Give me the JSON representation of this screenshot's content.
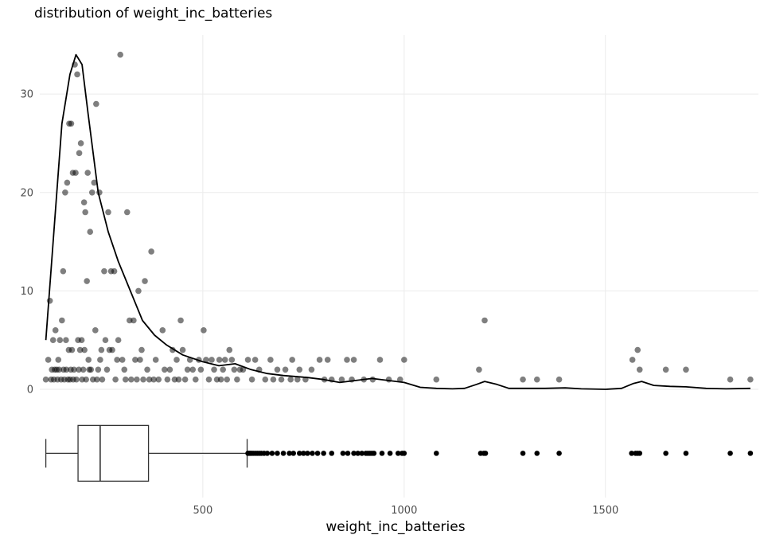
{
  "chart_data": {
    "type": "scatter",
    "title": "distribution of weight_inc_batteries",
    "xlabel": "weight_inc_batteries",
    "ylabel": "",
    "xlim": [
      95,
      1880
    ],
    "ylim": [
      -11,
      36
    ],
    "x_ticks": [
      500,
      1000,
      1500
    ],
    "y_ticks": [
      0,
      10,
      20,
      30
    ],
    "grid": true,
    "series": [
      {
        "kind": "scatter",
        "points": [
          [
            110,
            1
          ],
          [
            116,
            3
          ],
          [
            120,
            9
          ],
          [
            123,
            1
          ],
          [
            125,
            2
          ],
          [
            128,
            5
          ],
          [
            130,
            1
          ],
          [
            132,
            2
          ],
          [
            134,
            6
          ],
          [
            137,
            2
          ],
          [
            139,
            1
          ],
          [
            141,
            3
          ],
          [
            143,
            2
          ],
          [
            145,
            5
          ],
          [
            148,
            1
          ],
          [
            150,
            7
          ],
          [
            153,
            12
          ],
          [
            154,
            2
          ],
          [
            156,
            1
          ],
          [
            158,
            20
          ],
          [
            160,
            5
          ],
          [
            161,
            2
          ],
          [
            163,
            21
          ],
          [
            165,
            1
          ],
          [
            167,
            4
          ],
          [
            168,
            27
          ],
          [
            170,
            1
          ],
          [
            172,
            2
          ],
          [
            173,
            27
          ],
          [
            175,
            4
          ],
          [
            177,
            22
          ],
          [
            178,
            1
          ],
          [
            180,
            2
          ],
          [
            182,
            33
          ],
          [
            184,
            22
          ],
          [
            186,
            1
          ],
          [
            188,
            32
          ],
          [
            190,
            5
          ],
          [
            192,
            2
          ],
          [
            193,
            24
          ],
          [
            195,
            4
          ],
          [
            197,
            25
          ],
          [
            199,
            5
          ],
          [
            200,
            1
          ],
          [
            203,
            2
          ],
          [
            205,
            19
          ],
          [
            206,
            4
          ],
          [
            208,
            18
          ],
          [
            210,
            1
          ],
          [
            212,
            11
          ],
          [
            214,
            22
          ],
          [
            216,
            3
          ],
          [
            218,
            2
          ],
          [
            220,
            16
          ],
          [
            222,
            2
          ],
          [
            225,
            20
          ],
          [
            227,
            1
          ],
          [
            230,
            21
          ],
          [
            233,
            6
          ],
          [
            235,
            29
          ],
          [
            237,
            1
          ],
          [
            240,
            2
          ],
          [
            243,
            20
          ],
          [
            245,
            3
          ],
          [
            248,
            4
          ],
          [
            250,
            1
          ],
          [
            255,
            12
          ],
          [
            258,
            5
          ],
          [
            262,
            2
          ],
          [
            265,
            18
          ],
          [
            268,
            4
          ],
          [
            272,
            12
          ],
          [
            275,
            4
          ],
          [
            280,
            12
          ],
          [
            283,
            1
          ],
          [
            287,
            3
          ],
          [
            290,
            5
          ],
          [
            295,
            34
          ],
          [
            300,
            3
          ],
          [
            305,
            2
          ],
          [
            308,
            1
          ],
          [
            312,
            18
          ],
          [
            318,
            7
          ],
          [
            322,
            1
          ],
          [
            328,
            7
          ],
          [
            332,
            3
          ],
          [
            336,
            1
          ],
          [
            340,
            10
          ],
          [
            344,
            3
          ],
          [
            348,
            4
          ],
          [
            352,
            1
          ],
          [
            356,
            11
          ],
          [
            362,
            2
          ],
          [
            367,
            1
          ],
          [
            372,
            14
          ],
          [
            378,
            1
          ],
          [
            383,
            3
          ],
          [
            390,
            1
          ],
          [
            400,
            6
          ],
          [
            405,
            2
          ],
          [
            412,
            1
          ],
          [
            418,
            2
          ],
          [
            425,
            4
          ],
          [
            430,
            1
          ],
          [
            435,
            3
          ],
          [
            440,
            1
          ],
          [
            445,
            7
          ],
          [
            450,
            4
          ],
          [
            456,
            1
          ],
          [
            462,
            2
          ],
          [
            468,
            3
          ],
          [
            475,
            2
          ],
          [
            482,
            1
          ],
          [
            490,
            3
          ],
          [
            495,
            2
          ],
          [
            502,
            6
          ],
          [
            508,
            3
          ],
          [
            515,
            1
          ],
          [
            522,
            3
          ],
          [
            528,
            2
          ],
          [
            535,
            1
          ],
          [
            541,
            3
          ],
          [
            545,
            1
          ],
          [
            550,
            2
          ],
          [
            555,
            3
          ],
          [
            560,
            1
          ],
          [
            566,
            4
          ],
          [
            572,
            3
          ],
          [
            578,
            2
          ],
          [
            585,
            1
          ],
          [
            592,
            2
          ],
          [
            600,
            2
          ],
          [
            612,
            3
          ],
          [
            622,
            1
          ],
          [
            630,
            3
          ],
          [
            640,
            2
          ],
          [
            655,
            1
          ],
          [
            668,
            3
          ],
          [
            675,
            1
          ],
          [
            685,
            2
          ],
          [
            695,
            1
          ],
          [
            705,
            2
          ],
          [
            718,
            1
          ],
          [
            722,
            3
          ],
          [
            735,
            1
          ],
          [
            740,
            2
          ],
          [
            755,
            1
          ],
          [
            770,
            2
          ],
          [
            790,
            3
          ],
          [
            802,
            1
          ],
          [
            810,
            3
          ],
          [
            820,
            1
          ],
          [
            845,
            1
          ],
          [
            858,
            3
          ],
          [
            870,
            1
          ],
          [
            875,
            3
          ],
          [
            900,
            1
          ],
          [
            922,
            1
          ],
          [
            940,
            3
          ],
          [
            962,
            1
          ],
          [
            990,
            1
          ],
          [
            1000,
            3
          ],
          [
            1080,
            1
          ],
          [
            1186,
            2
          ],
          [
            1200,
            7
          ],
          [
            1295,
            1
          ],
          [
            1330,
            1
          ],
          [
            1385,
            1
          ],
          [
            1567,
            3
          ],
          [
            1580,
            4
          ],
          [
            1585,
            2
          ],
          [
            1650,
            2
          ],
          [
            1700,
            2
          ],
          [
            1810,
            1
          ],
          [
            1860,
            1
          ]
        ]
      },
      {
        "kind": "density",
        "points": [
          [
            110,
            5
          ],
          [
            130,
            16
          ],
          [
            150,
            27
          ],
          [
            170,
            32
          ],
          [
            185,
            34
          ],
          [
            200,
            33
          ],
          [
            215,
            28
          ],
          [
            240,
            20
          ],
          [
            265,
            16
          ],
          [
            290,
            13
          ],
          [
            320,
            10
          ],
          [
            350,
            7
          ],
          [
            380,
            5.5
          ],
          [
            410,
            4.5
          ],
          [
            450,
            3.5
          ],
          [
            500,
            2.8
          ],
          [
            540,
            2.4
          ],
          [
            580,
            2.6
          ],
          [
            620,
            2
          ],
          [
            660,
            1.6
          ],
          [
            700,
            1.4
          ],
          [
            760,
            1.2
          ],
          [
            800,
            1
          ],
          [
            840,
            0.7
          ],
          [
            880,
            0.9
          ],
          [
            920,
            1.1
          ],
          [
            960,
            0.9
          ],
          [
            1000,
            0.7
          ],
          [
            1040,
            0.2
          ],
          [
            1080,
            0.1
          ],
          [
            1120,
            0.05
          ],
          [
            1150,
            0.1
          ],
          [
            1180,
            0.5
          ],
          [
            1200,
            0.8
          ],
          [
            1230,
            0.5
          ],
          [
            1260,
            0.1
          ],
          [
            1300,
            0.1
          ],
          [
            1350,
            0.1
          ],
          [
            1400,
            0.15
          ],
          [
            1440,
            0.05
          ],
          [
            1500,
            0
          ],
          [
            1540,
            0.1
          ],
          [
            1570,
            0.6
          ],
          [
            1590,
            0.8
          ],
          [
            1620,
            0.4
          ],
          [
            1660,
            0.3
          ],
          [
            1700,
            0.25
          ],
          [
            1750,
            0.1
          ],
          [
            1800,
            0.05
          ],
          [
            1860,
            0.1
          ]
        ]
      },
      {
        "kind": "boxplot",
        "y": -6.5,
        "whisker_low": 110,
        "q1": 190,
        "median": 245,
        "q3": 365,
        "whisker_high": 610,
        "outliers": [
          612,
          615,
          618,
          621,
          625,
          630,
          635,
          640,
          645,
          652,
          660,
          672,
          685,
          700,
          715,
          725,
          740,
          750,
          760,
          772,
          785,
          800,
          820,
          848,
          860,
          875,
          885,
          895,
          905,
          910,
          915,
          920,
          925,
          945,
          965,
          985,
          995,
          1000,
          1080,
          1190,
          1198,
          1202,
          1295,
          1330,
          1385,
          1565,
          1575,
          1580,
          1585,
          1650,
          1700,
          1810,
          1860
        ]
      }
    ]
  }
}
